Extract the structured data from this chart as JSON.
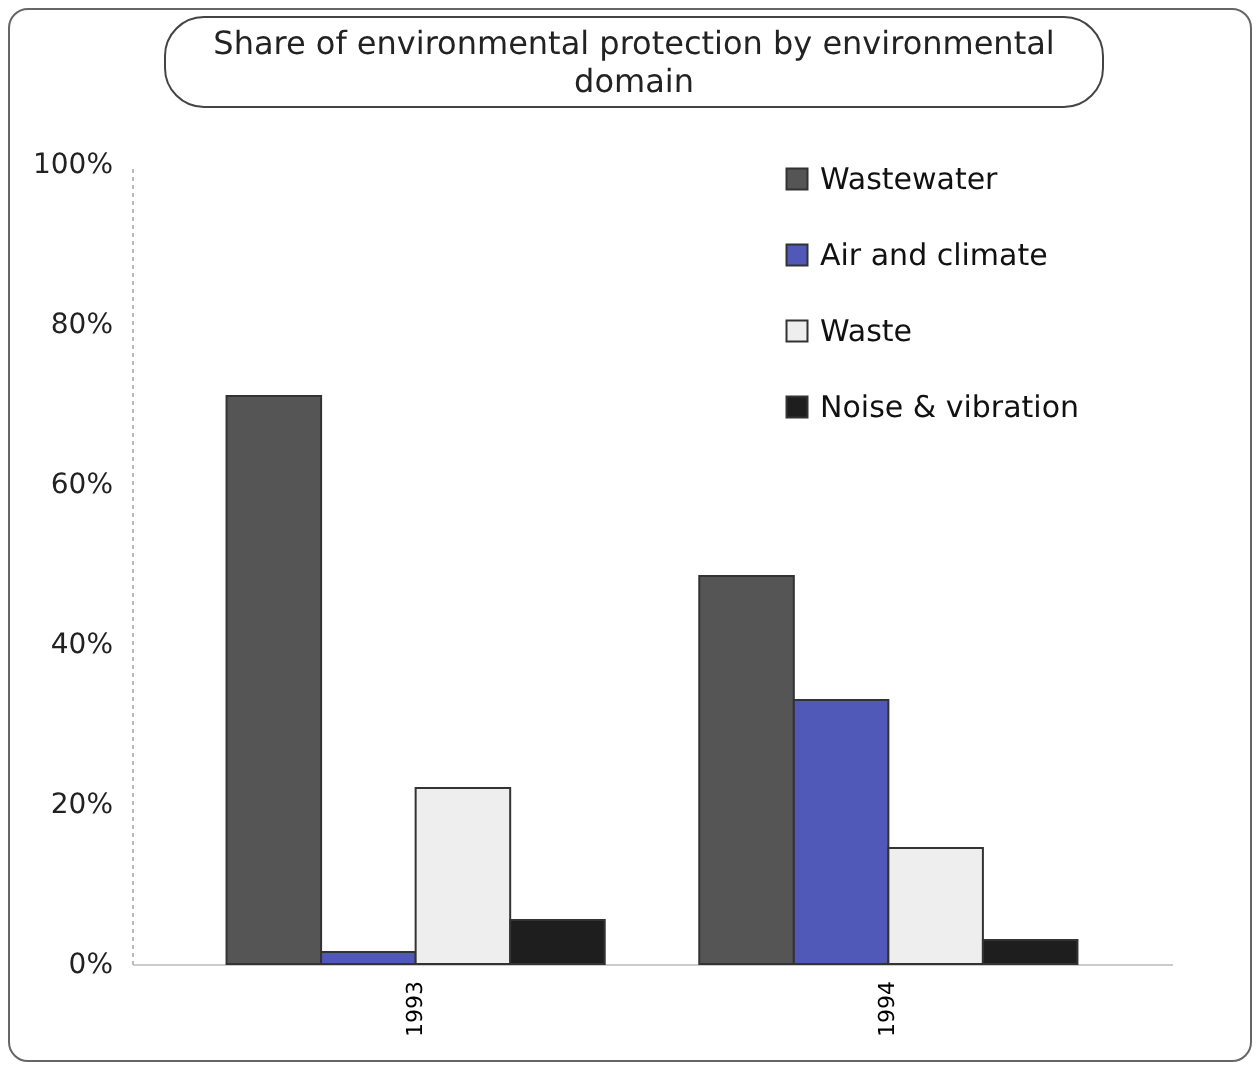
{
  "chart_data": {
    "type": "bar",
    "title": "Share of environmental protection by environmental domain",
    "categories": [
      "1993",
      "1994"
    ],
    "series": [
      {
        "name": "Wastewater",
        "color": "#555555",
        "values": [
          71,
          48.5
        ]
      },
      {
        "name": "Air and climate",
        "color": "#5058b8",
        "values": [
          1.5,
          33
        ]
      },
      {
        "name": "Waste",
        "color": "#eeeeee",
        "values": [
          22,
          14.5
        ]
      },
      {
        "name": "Noise & vibration",
        "color": "#1e1e1e",
        "values": [
          5.5,
          3
        ]
      }
    ],
    "ylim": [
      0,
      100
    ],
    "yticks": [
      {
        "value": 0,
        "label": "0%"
      },
      {
        "value": 20,
        "label": "20%"
      },
      {
        "value": 40,
        "label": "40%"
      },
      {
        "value": 60,
        "label": "60%"
      },
      {
        "value": 80,
        "label": "80%"
      },
      {
        "value": 100,
        "label": "100%"
      }
    ],
    "legend": "top right"
  }
}
